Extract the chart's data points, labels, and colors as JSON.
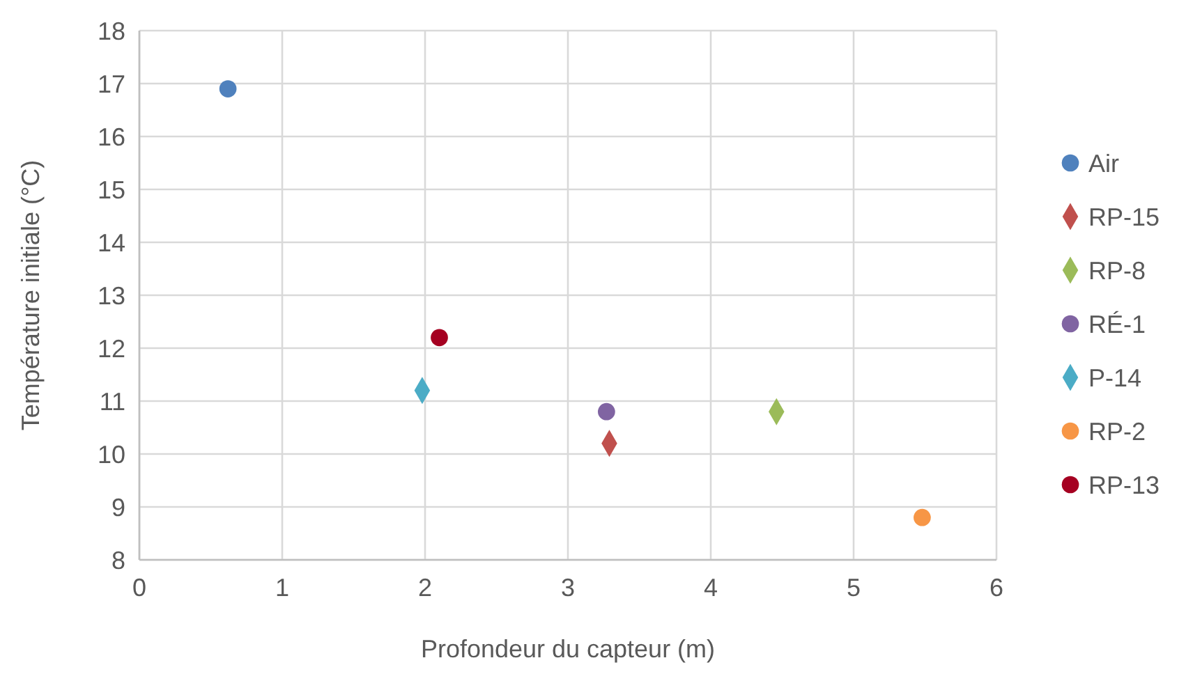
{
  "chart_data": {
    "type": "scatter",
    "xlabel": "Profondeur du capteur (m)",
    "ylabel": "Température initiale (°C)",
    "xlim": [
      0,
      6
    ],
    "xticks": [
      0,
      1,
      2,
      3,
      4,
      5,
      6
    ],
    "ylim": [
      8,
      18
    ],
    "yticks": [
      8,
      9,
      10,
      11,
      12,
      13,
      14,
      15,
      16,
      17,
      18
    ],
    "grid": true,
    "legend": "right",
    "series": [
      {
        "name": "Air",
        "color": "#4f81bd",
        "marker": "circle",
        "x": [
          0.62
        ],
        "values": [
          16.9
        ]
      },
      {
        "name": "RP-15",
        "color": "#c0504d",
        "marker": "diamond",
        "x": [
          3.29
        ],
        "values": [
          10.2
        ]
      },
      {
        "name": "RP-8",
        "color": "#9bbb59",
        "marker": "diamond",
        "x": [
          4.46
        ],
        "values": [
          10.8
        ]
      },
      {
        "name": "RÉ-1",
        "color": "#8064a2",
        "marker": "circle",
        "x": [
          3.27
        ],
        "values": [
          10.8
        ]
      },
      {
        "name": "P-14",
        "color": "#4bacc6",
        "marker": "diamond",
        "x": [
          1.98
        ],
        "values": [
          11.2
        ]
      },
      {
        "name": "RP-2",
        "color": "#f79646",
        "marker": "circle",
        "x": [
          5.48
        ],
        "values": [
          8.8
        ]
      },
      {
        "name": "RP-13",
        "color": "#a50021",
        "marker": "circle",
        "x": [
          2.1
        ],
        "values": [
          12.2
        ]
      }
    ]
  }
}
